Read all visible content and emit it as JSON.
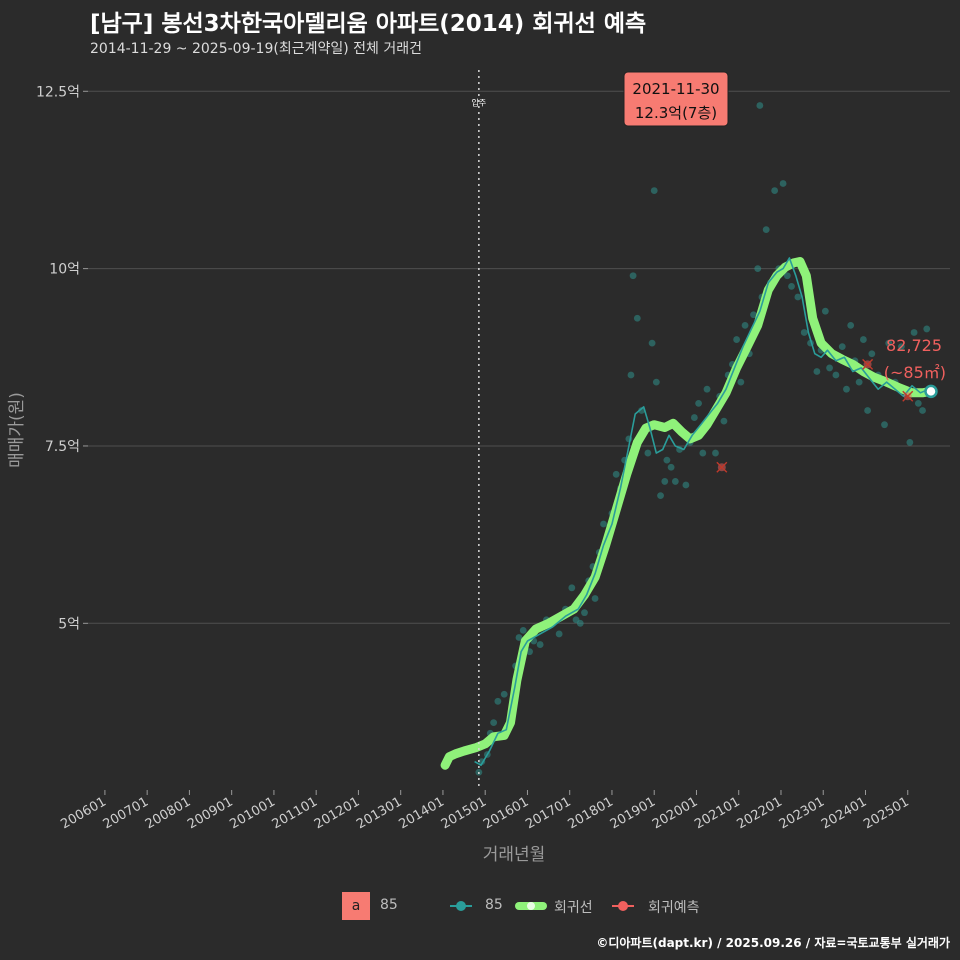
{
  "title": "[남구] 봉선3차한국아델리움 아파트(2014) 회귀선 예측",
  "subtitle": "2014-11-29 ~ 2025-09-19(최근계약일) 전체 거래건",
  "footer": "©디아파트(dapt.kr) / 2025.09.26 / 자료=국토교통부 실거래가",
  "colors": {
    "background": "#2b2b2b",
    "grid": "#4f4f4f",
    "points": "#2f8f8a",
    "line85": "#2a9d9a",
    "regression": "#8ff27a",
    "forecast": "#f0605e",
    "callout_bg": "#f77b72"
  },
  "legend": {
    "box_letter": "a",
    "box_label": "85",
    "series85": "85",
    "regression": "회귀선",
    "forecast": "회귀예측"
  },
  "chart_data": {
    "type": "scatter",
    "xlabel": "거래년월",
    "ylabel": "매매가(원)",
    "x_unit": "decimal year",
    "y_unit": "억",
    "xlim": [
      2005.6,
      2026.0
    ],
    "ylim": [
      2.65,
      12.8
    ],
    "x_ticks": [
      {
        "v": 2006.0,
        "label": "200601"
      },
      {
        "v": 2007.0,
        "label": "200701"
      },
      {
        "v": 2008.0,
        "label": "200801"
      },
      {
        "v": 2009.0,
        "label": "200901"
      },
      {
        "v": 2010.0,
        "label": "201001"
      },
      {
        "v": 2011.0,
        "label": "201101"
      },
      {
        "v": 2012.0,
        "label": "201201"
      },
      {
        "v": 2013.0,
        "label": "201301"
      },
      {
        "v": 2014.0,
        "label": "201401"
      },
      {
        "v": 2015.0,
        "label": "201501"
      },
      {
        "v": 2016.0,
        "label": "201601"
      },
      {
        "v": 2017.0,
        "label": "201701"
      },
      {
        "v": 2018.0,
        "label": "201801"
      },
      {
        "v": 2019.0,
        "label": "201901"
      },
      {
        "v": 2020.0,
        "label": "202001"
      },
      {
        "v": 2021.0,
        "label": "202101"
      },
      {
        "v": 2022.0,
        "label": "202201"
      },
      {
        "v": 2023.0,
        "label": "202301"
      },
      {
        "v": 2024.0,
        "label": "202401"
      },
      {
        "v": 2025.0,
        "label": "202501"
      }
    ],
    "y_ticks": [
      {
        "v": 5,
        "label": "5억"
      },
      {
        "v": 7.5,
        "label": "7.5억"
      },
      {
        "v": 10,
        "label": "10억"
      },
      {
        "v": 12.5,
        "label": "12.5억"
      }
    ],
    "move_in": {
      "x": 2014.85,
      "label": "입주"
    },
    "callout": {
      "x": 2021.5,
      "y": 12.3,
      "date": "2021-11-30",
      "price": "12.3억(7층)"
    },
    "end_label": {
      "x": 2025.55,
      "y": 8.27,
      "value": "82,725",
      "area": "(~85㎡)"
    },
    "regression": [
      [
        2014.05,
        3.0
      ],
      [
        2014.15,
        3.12
      ],
      [
        2014.3,
        3.16
      ],
      [
        2014.5,
        3.2
      ],
      [
        2014.8,
        3.25
      ],
      [
        2015.0,
        3.3
      ],
      [
        2015.2,
        3.4
      ],
      [
        2015.45,
        3.42
      ],
      [
        2015.6,
        3.6
      ],
      [
        2015.75,
        4.2
      ],
      [
        2015.95,
        4.75
      ],
      [
        2016.2,
        4.92
      ],
      [
        2016.5,
        5.0
      ],
      [
        2016.8,
        5.1
      ],
      [
        2017.1,
        5.2
      ],
      [
        2017.35,
        5.4
      ],
      [
        2017.6,
        5.65
      ],
      [
        2017.85,
        6.1
      ],
      [
        2018.1,
        6.6
      ],
      [
        2018.35,
        7.1
      ],
      [
        2018.6,
        7.55
      ],
      [
        2018.8,
        7.75
      ],
      [
        2019.0,
        7.8
      ],
      [
        2019.25,
        7.76
      ],
      [
        2019.45,
        7.82
      ],
      [
        2019.65,
        7.7
      ],
      [
        2019.85,
        7.6
      ],
      [
        2020.05,
        7.65
      ],
      [
        2020.25,
        7.8
      ],
      [
        2020.45,
        8.0
      ],
      [
        2020.7,
        8.25
      ],
      [
        2020.95,
        8.6
      ],
      [
        2021.2,
        8.9
      ],
      [
        2021.45,
        9.2
      ],
      [
        2021.7,
        9.7
      ],
      [
        2021.9,
        9.9
      ],
      [
        2022.1,
        10.02
      ],
      [
        2022.3,
        10.08
      ],
      [
        2022.45,
        10.1
      ],
      [
        2022.6,
        9.9
      ],
      [
        2022.75,
        9.3
      ],
      [
        2022.95,
        8.95
      ],
      [
        2023.2,
        8.8
      ],
      [
        2023.45,
        8.72
      ],
      [
        2023.7,
        8.65
      ],
      [
        2023.95,
        8.55
      ],
      [
        2024.2,
        8.47
      ],
      [
        2024.5,
        8.4
      ],
      [
        2024.8,
        8.32
      ],
      [
        2025.1,
        8.25
      ],
      [
        2025.35,
        8.25
      ],
      [
        2025.55,
        8.27
      ]
    ],
    "line85": [
      [
        2014.75,
        3.05
      ],
      [
        2014.9,
        3.0
      ],
      [
        2015.1,
        3.2
      ],
      [
        2015.3,
        3.45
      ],
      [
        2015.5,
        3.5
      ],
      [
        2015.7,
        4.1
      ],
      [
        2015.85,
        4.6
      ],
      [
        2016.0,
        4.75
      ],
      [
        2016.3,
        4.85
      ],
      [
        2016.6,
        4.95
      ],
      [
        2016.9,
        5.1
      ],
      [
        2017.2,
        5.2
      ],
      [
        2017.4,
        5.4
      ],
      [
        2017.6,
        5.7
      ],
      [
        2017.8,
        6.1
      ],
      [
        2018.0,
        6.4
      ],
      [
        2018.2,
        6.9
      ],
      [
        2018.4,
        7.5
      ],
      [
        2018.55,
        7.95
      ],
      [
        2018.75,
        8.05
      ],
      [
        2018.9,
        7.75
      ],
      [
        2019.05,
        7.4
      ],
      [
        2019.2,
        7.45
      ],
      [
        2019.35,
        7.65
      ],
      [
        2019.5,
        7.5
      ],
      [
        2019.7,
        7.45
      ],
      [
        2019.9,
        7.65
      ],
      [
        2020.1,
        7.8
      ],
      [
        2020.3,
        7.95
      ],
      [
        2020.5,
        8.1
      ],
      [
        2020.7,
        8.3
      ],
      [
        2020.9,
        8.6
      ],
      [
        2021.1,
        8.9
      ],
      [
        2021.3,
        9.15
      ],
      [
        2021.5,
        9.4
      ],
      [
        2021.7,
        9.8
      ],
      [
        2021.9,
        9.95
      ],
      [
        2022.05,
        10.0
      ],
      [
        2022.2,
        10.15
      ],
      [
        2022.35,
        9.9
      ],
      [
        2022.5,
        9.6
      ],
      [
        2022.65,
        9.1
      ],
      [
        2022.8,
        8.8
      ],
      [
        2022.95,
        8.75
      ],
      [
        2023.1,
        8.85
      ],
      [
        2023.3,
        8.7
      ],
      [
        2023.5,
        8.75
      ],
      [
        2023.7,
        8.55
      ],
      [
        2023.9,
        8.6
      ],
      [
        2024.1,
        8.45
      ],
      [
        2024.3,
        8.3
      ],
      [
        2024.5,
        8.4
      ],
      [
        2024.7,
        8.3
      ],
      [
        2024.9,
        8.2
      ],
      [
        2025.1,
        8.35
      ],
      [
        2025.3,
        8.25
      ],
      [
        2025.5,
        8.3
      ]
    ],
    "points": [
      [
        2014.85,
        2.9
      ],
      [
        2014.92,
        3.05
      ],
      [
        2014.98,
        3.3
      ],
      [
        2015.05,
        3.15
      ],
      [
        2015.12,
        3.45
      ],
      [
        2015.2,
        3.6
      ],
      [
        2015.3,
        3.9
      ],
      [
        2015.45,
        4.0
      ],
      [
        2015.6,
        3.6
      ],
      [
        2015.72,
        4.4
      ],
      [
        2015.8,
        4.8
      ],
      [
        2015.9,
        4.9
      ],
      [
        2016.05,
        4.6
      ],
      [
        2016.15,
        4.75
      ],
      [
        2016.3,
        4.7
      ],
      [
        2016.45,
        5.05
      ],
      [
        2016.6,
        5.0
      ],
      [
        2016.75,
        4.85
      ],
      [
        2016.9,
        5.2
      ],
      [
        2017.05,
        5.5
      ],
      [
        2017.15,
        5.05
      ],
      [
        2017.25,
        5.0
      ],
      [
        2017.35,
        5.15
      ],
      [
        2017.45,
        5.6
      ],
      [
        2017.55,
        5.8
      ],
      [
        2017.6,
        5.35
      ],
      [
        2017.7,
        6.0
      ],
      [
        2017.8,
        6.4
      ],
      [
        2017.9,
        6.2
      ],
      [
        2018.0,
        6.55
      ],
      [
        2018.1,
        7.1
      ],
      [
        2018.2,
        6.9
      ],
      [
        2018.3,
        7.3
      ],
      [
        2018.4,
        7.6
      ],
      [
        2018.45,
        8.5
      ],
      [
        2018.5,
        9.9
      ],
      [
        2018.6,
        9.3
      ],
      [
        2018.7,
        8.0
      ],
      [
        2018.85,
        7.4
      ],
      [
        2018.95,
        8.95
      ],
      [
        2019.05,
        8.4
      ],
      [
        2019.15,
        6.8
      ],
      [
        2019.25,
        7.0
      ],
      [
        2019.3,
        7.3
      ],
      [
        2019.4,
        7.2
      ],
      [
        2019.5,
        7.0
      ],
      [
        2019.6,
        7.45
      ],
      [
        2019.75,
        6.95
      ],
      [
        2019.85,
        7.55
      ],
      [
        2019.95,
        7.9
      ],
      [
        2020.05,
        8.1
      ],
      [
        2020.15,
        7.4
      ],
      [
        2020.25,
        8.3
      ],
      [
        2020.35,
        7.9
      ],
      [
        2020.45,
        7.4
      ],
      [
        2020.55,
        8.2
      ],
      [
        2020.65,
        7.85
      ],
      [
        2020.75,
        8.5
      ],
      [
        2020.85,
        8.65
      ],
      [
        2020.95,
        9.0
      ],
      [
        2021.05,
        8.4
      ],
      [
        2021.15,
        9.2
      ],
      [
        2021.25,
        8.8
      ],
      [
        2021.35,
        9.35
      ],
      [
        2021.45,
        10.0
      ],
      [
        2021.55,
        9.6
      ],
      [
        2021.65,
        10.55
      ],
      [
        2021.75,
        9.8
      ],
      [
        2021.85,
        11.1
      ],
      [
        2021.95,
        10.0
      ],
      [
        2022.05,
        11.2
      ],
      [
        2022.15,
        9.9
      ],
      [
        2022.25,
        9.75
      ],
      [
        2022.4,
        9.6
      ],
      [
        2022.55,
        9.1
      ],
      [
        2022.7,
        8.95
      ],
      [
        2022.85,
        8.55
      ],
      [
        2022.95,
        8.85
      ],
      [
        2023.05,
        9.4
      ],
      [
        2023.15,
        8.6
      ],
      [
        2023.3,
        8.5
      ],
      [
        2023.45,
        8.9
      ],
      [
        2023.55,
        8.3
      ],
      [
        2023.65,
        9.2
      ],
      [
        2023.75,
        8.7
      ],
      [
        2023.85,
        8.4
      ],
      [
        2023.95,
        9.0
      ],
      [
        2024.05,
        8.0
      ],
      [
        2024.15,
        8.8
      ],
      [
        2024.3,
        8.5
      ],
      [
        2024.45,
        7.8
      ],
      [
        2024.55,
        8.95
      ],
      [
        2024.7,
        8.4
      ],
      [
        2024.85,
        8.9
      ],
      [
        2024.95,
        8.3
      ],
      [
        2025.05,
        7.55
      ],
      [
        2025.15,
        9.1
      ],
      [
        2025.25,
        8.1
      ],
      [
        2025.35,
        8.0
      ],
      [
        2025.45,
        9.15
      ],
      [
        2019.0,
        11.1
      ],
      [
        2021.5,
        12.3
      ]
    ],
    "forecast_points": [
      [
        2020.6,
        7.2
      ],
      [
        2024.05,
        8.65
      ],
      [
        2025.0,
        8.2
      ]
    ]
  }
}
